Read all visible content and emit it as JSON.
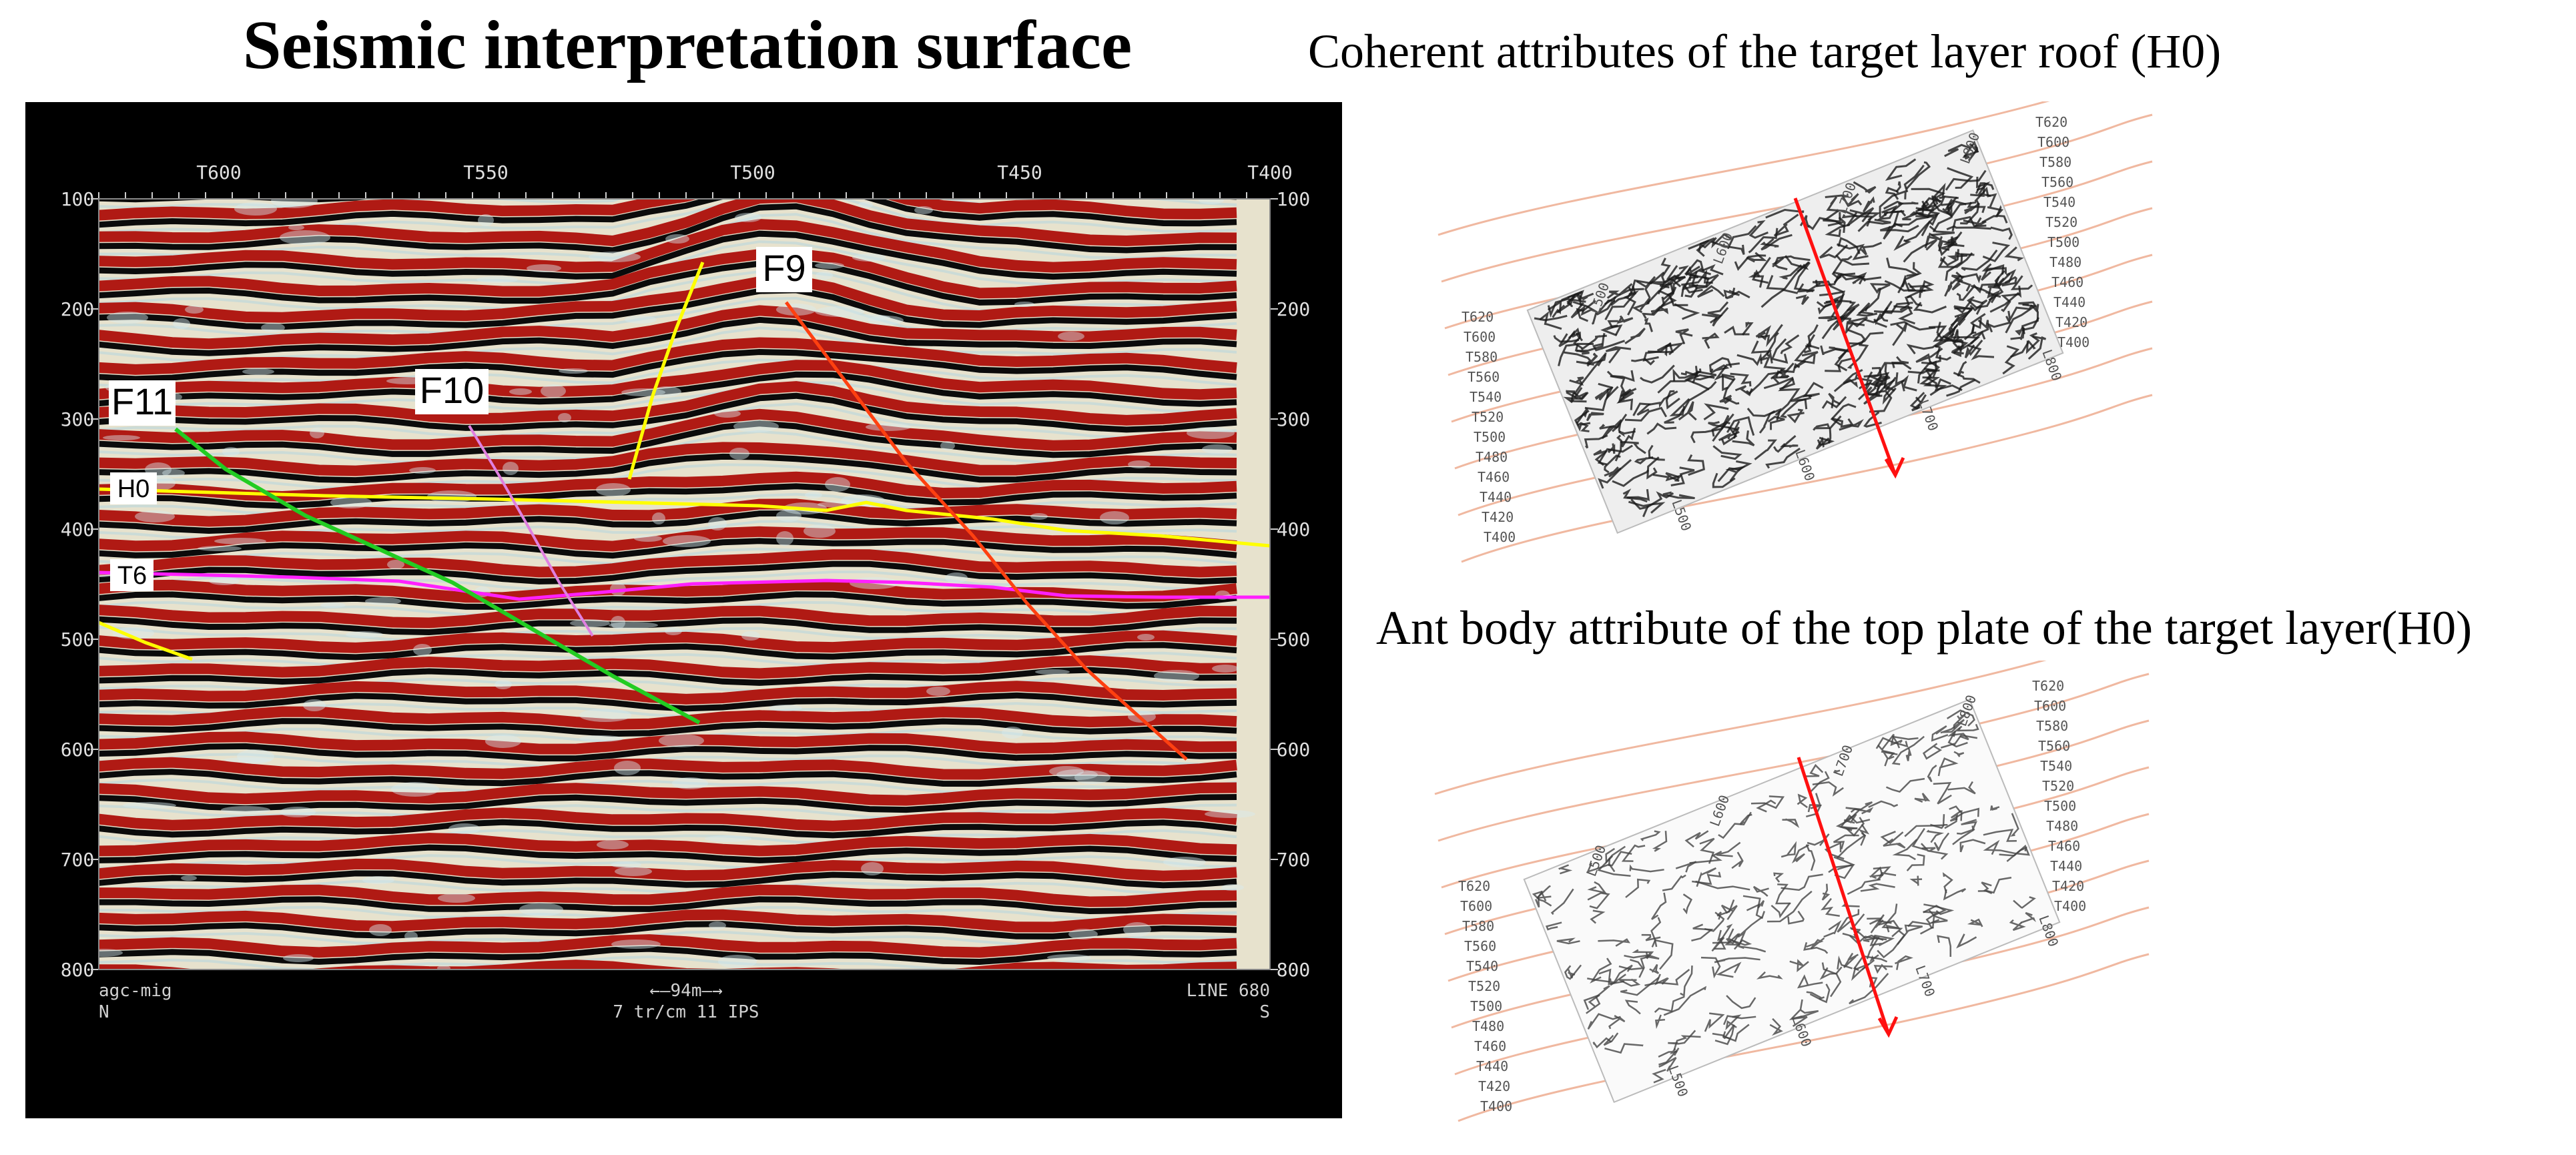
{
  "titles": {
    "main": "Seismic interpretation surface",
    "coherent": "Coherent attributes of the target layer roof (H0)",
    "ant": "Ant body attribute of the top plate of the target layer(H0)"
  },
  "section": {
    "trace_labels": [
      "T600",
      "T550",
      "T500",
      "T450",
      "T400"
    ],
    "time_labels": [
      "100",
      "200",
      "300",
      "400",
      "500",
      "600",
      "700",
      "800"
    ],
    "faults": [
      "F11",
      "F10",
      "F9"
    ],
    "horizons": [
      "H0",
      "T6"
    ],
    "footer_left": "agc-mig",
    "footer_left2": "N",
    "footer_center": "←—94m—→",
    "footer_center2": "7 tr/cm 11 IPS",
    "footer_right": "LINE 680",
    "footer_right2": "S",
    "colors": {
      "F11": "#22cc22",
      "F10": "#e080e0",
      "F9": "#ff4010",
      "H0": "#ffff00",
      "T6": "#ff20ff",
      "yellow_fault": "#ffff00"
    }
  },
  "maps": {
    "coherent": {
      "left_labels": [
        "T620",
        "T600",
        "T580",
        "T560",
        "T540",
        "T520",
        "T500",
        "T480",
        "T460",
        "T440",
        "T420",
        "T400"
      ],
      "right_labels": [
        "T620",
        "T600",
        "T580",
        "T560",
        "T540",
        "T520",
        "T500",
        "T480",
        "T460",
        "T440",
        "T420",
        "T400"
      ],
      "top_labels": [
        "L500",
        "L600",
        "L700",
        "L800"
      ],
      "bottom_labels": [
        "L500",
        "L600",
        "L700",
        "L800"
      ]
    },
    "ant": {
      "left_labels": [
        "T620",
        "T600",
        "T580",
        "T560",
        "T540",
        "T520",
        "T500",
        "T480",
        "T460",
        "T440",
        "T420",
        "T400"
      ],
      "right_labels": [
        "T620",
        "T600",
        "T580",
        "T560",
        "T540",
        "T520",
        "T500",
        "T480",
        "T460",
        "T440",
        "T420",
        "T400"
      ],
      "top_labels": [
        "L500",
        "L600",
        "L700",
        "L800"
      ],
      "bottom_labels": [
        "L500",
        "L600",
        "L700",
        "L800"
      ]
    }
  }
}
